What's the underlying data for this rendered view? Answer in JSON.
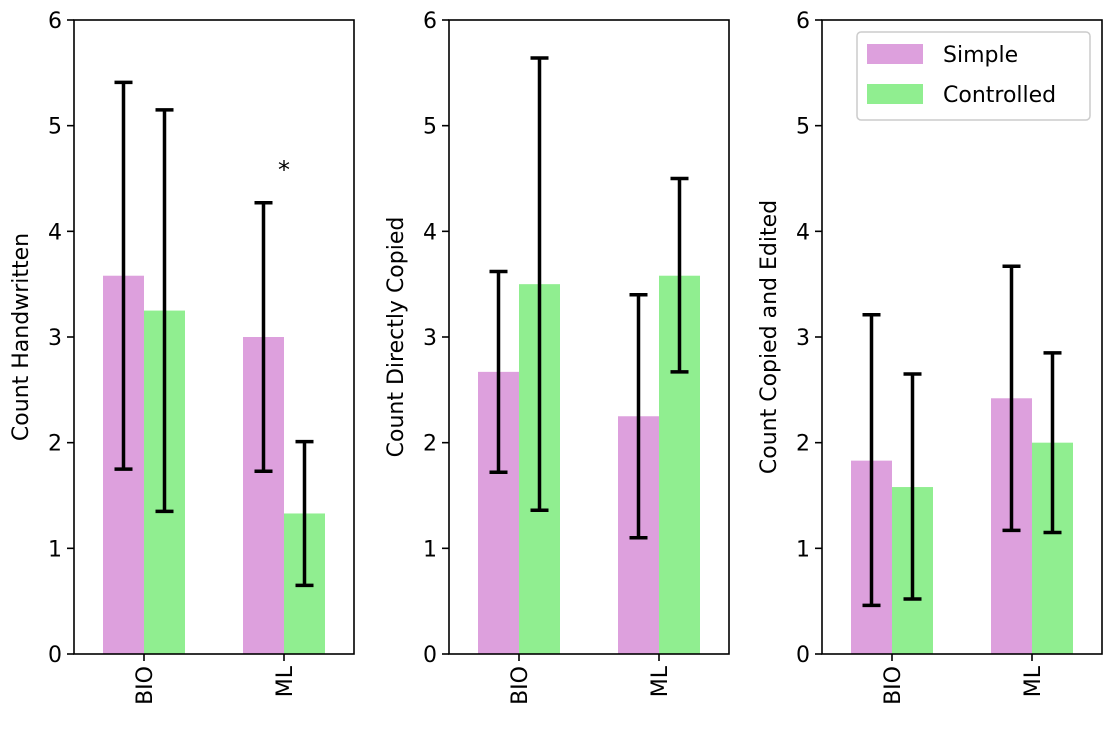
{
  "colors": {
    "simple": "#dda0dd",
    "controlled": "#90ee90",
    "error": "#000000"
  },
  "legend": {
    "items": [
      {
        "label": "Simple",
        "color": "#dda0dd"
      },
      {
        "label": "Controlled",
        "color": "#90ee90"
      }
    ]
  },
  "chart_data": [
    {
      "type": "bar",
      "ylabel": "Count Handwritten",
      "categories": [
        "BIO",
        "ML"
      ],
      "ylim": [
        0,
        6
      ],
      "yticks": [
        "0",
        "1",
        "2",
        "3",
        "4",
        "5",
        "6"
      ],
      "series": [
        {
          "name": "Simple",
          "values": [
            3.58,
            3.0
          ],
          "err_low": [
            1.75,
            1.73
          ],
          "err_high": [
            5.41,
            4.27
          ]
        },
        {
          "name": "Controlled",
          "values": [
            3.25,
            1.33
          ],
          "err_low": [
            1.35,
            0.65
          ],
          "err_high": [
            5.15,
            2.01
          ]
        }
      ],
      "annotations": [
        {
          "text": "*",
          "x_category": "ML",
          "y": 4.6
        }
      ]
    },
    {
      "type": "bar",
      "ylabel": "Count Directly Copied",
      "categories": [
        "BIO",
        "ML"
      ],
      "ylim": [
        0,
        6
      ],
      "yticks": [
        "0",
        "1",
        "2",
        "3",
        "4",
        "5",
        "6"
      ],
      "series": [
        {
          "name": "Simple",
          "values": [
            2.67,
            2.25
          ],
          "err_low": [
            1.72,
            1.1
          ],
          "err_high": [
            3.62,
            3.4
          ]
        },
        {
          "name": "Controlled",
          "values": [
            3.5,
            3.58
          ],
          "err_low": [
            1.36,
            2.67
          ],
          "err_high": [
            5.64,
            4.5
          ]
        }
      ],
      "annotations": []
    },
    {
      "type": "bar",
      "ylabel": "Count Copied and Edited",
      "categories": [
        "BIO",
        "ML"
      ],
      "ylim": [
        0,
        6
      ],
      "yticks": [
        "0",
        "1",
        "2",
        "3",
        "4",
        "5",
        "6"
      ],
      "series": [
        {
          "name": "Simple",
          "values": [
            1.83,
            2.42
          ],
          "err_low": [
            0.46,
            1.17
          ],
          "err_high": [
            3.21,
            3.67
          ]
        },
        {
          "name": "Controlled",
          "values": [
            1.58,
            2.0
          ],
          "err_low": [
            0.52,
            1.15
          ],
          "err_high": [
            2.65,
            2.85
          ]
        }
      ],
      "annotations": []
    }
  ]
}
